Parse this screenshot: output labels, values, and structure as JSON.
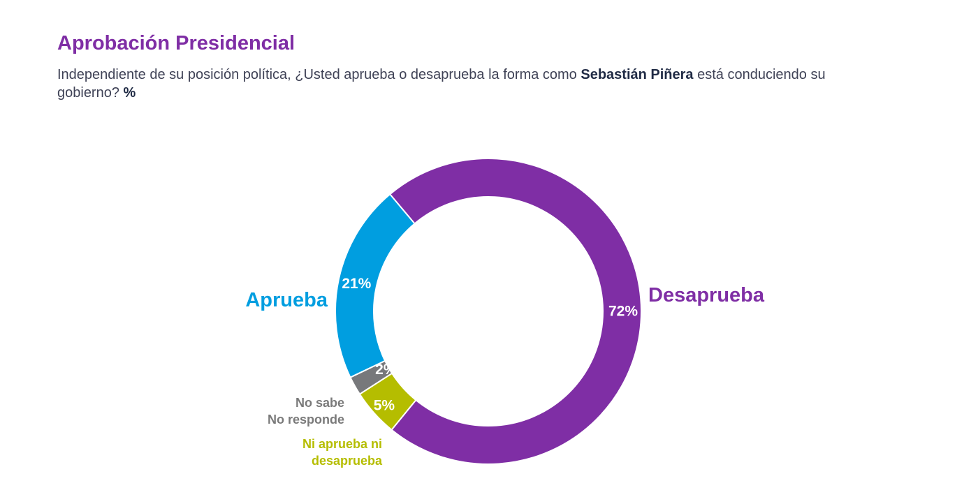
{
  "header": {
    "title": "Aprobación Presidencial",
    "subtitle_part1": "Independiente de su posición política, ¿Usted aprueba o desaprueba la forma como ",
    "subtitle_bold_name": "Sebastián Piñera",
    "subtitle_part2": " está conduciendo su gobierno? ",
    "subtitle_bold_unit": "%"
  },
  "chart_data": {
    "type": "pie",
    "variant": "donut",
    "title": "Aprobación Presidencial",
    "categories": [
      "Desaprueba",
      "Ni aprueba ni desaprueba",
      "No sabe No responde",
      "Aprueba"
    ],
    "values": [
      72,
      5,
      2,
      21
    ],
    "value_labels": [
      "72%",
      "5%",
      "2%",
      "21%"
    ],
    "category_label_lines": [
      [
        "Desaprueba"
      ],
      [
        "Ni aprueba ni",
        "desaprueba"
      ],
      [
        "No sabe",
        "No responde"
      ],
      [
        "Aprueba"
      ]
    ],
    "colors": [
      "#7f2ea5",
      "#b5bd00",
      "#77787b",
      "#009ee0"
    ],
    "category_label_colors": [
      "#7f2ea5",
      "#b5bd00",
      "#7a7a7a",
      "#009ee0"
    ]
  }
}
